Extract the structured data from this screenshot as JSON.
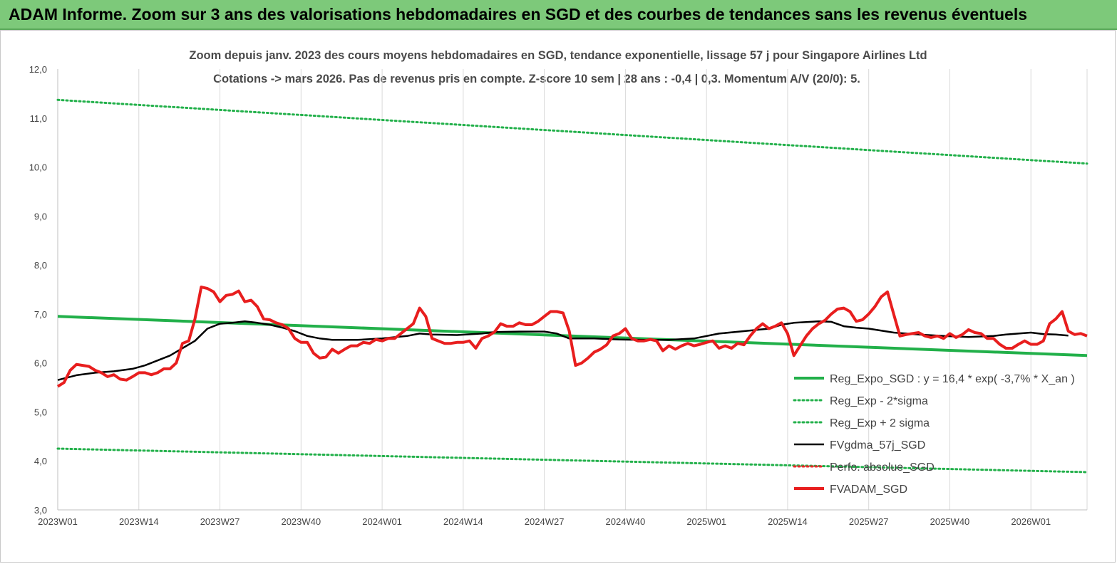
{
  "banner": {
    "title": "ADAM Informe. Zoom sur 3 ans des valorisations hebdomadaires en SGD et des courbes de tendances sans les revenus éventuels"
  },
  "chart_data": {
    "type": "line",
    "title": "Zoom depuis janv. 2023 des cours moyens hebdomadaires en SGD, tendance exponentielle, lissage 57 j pour Singapore Airlines Ltd",
    "subtitle": "Cotations -> mars 2026. Pas de revenus pris en compte. Z-score 10 sem | 28 ans : -0,4 | 0,3. Momentum A/V (20/0): 5.",
    "xlabel": "",
    "ylabel": "",
    "ylim": [
      3.0,
      12.0
    ],
    "y_ticks": [
      "3,0",
      "4,0",
      "5,0",
      "6,0",
      "7,0",
      "8,0",
      "9,0",
      "10,0",
      "11,0",
      "12,0"
    ],
    "x_range": [
      "2023W01",
      "2026W12"
    ],
    "x_ticks": [
      "2023W01",
      "2023W14",
      "2023W27",
      "2023W40",
      "2024W01",
      "2024W14",
      "2024W27",
      "2024W40",
      "2025W01",
      "2025W14",
      "2025W27",
      "2025W40",
      "2026W01"
    ],
    "grid": "vertical",
    "legend_position": "bottom-right",
    "series": [
      {
        "name": "Reg_Expo_SGD : y = 16,4 * exp( -3,7% *  X_an )",
        "color": "#22b04a",
        "style": "thick",
        "linear_from_to": [
          6.95,
          6.15
        ]
      },
      {
        "name": "Reg_Exp - 2*sigma",
        "color": "#22b04a",
        "style": "dotted",
        "linear_from_to": [
          4.25,
          3.77
        ]
      },
      {
        "name": "Reg_Exp + 2 sigma",
        "color": "#22b04a",
        "style": "dotted",
        "linear_from_to": [
          11.37,
          10.07
        ]
      },
      {
        "name": "FVgdma_57j_SGD",
        "color": "#000000",
        "style": "solid",
        "points": [
          [
            0,
            5.65
          ],
          [
            3,
            5.75
          ],
          [
            6,
            5.8
          ],
          [
            9,
            5.83
          ],
          [
            12,
            5.88
          ],
          [
            14,
            5.95
          ],
          [
            16,
            6.05
          ],
          [
            18,
            6.15
          ],
          [
            20,
            6.3
          ],
          [
            22,
            6.45
          ],
          [
            24,
            6.7
          ],
          [
            26,
            6.8
          ],
          [
            28,
            6.82
          ],
          [
            30,
            6.85
          ],
          [
            32,
            6.82
          ],
          [
            34,
            6.78
          ],
          [
            36,
            6.72
          ],
          [
            38,
            6.65
          ],
          [
            40,
            6.55
          ],
          [
            42,
            6.5
          ],
          [
            44,
            6.47
          ],
          [
            48,
            6.47
          ],
          [
            52,
            6.5
          ],
          [
            56,
            6.55
          ],
          [
            58,
            6.6
          ],
          [
            60,
            6.58
          ],
          [
            64,
            6.57
          ],
          [
            68,
            6.6
          ],
          [
            70,
            6.63
          ],
          [
            74,
            6.64
          ],
          [
            78,
            6.64
          ],
          [
            80,
            6.6
          ],
          [
            82,
            6.5
          ],
          [
            86,
            6.5
          ],
          [
            90,
            6.48
          ],
          [
            94,
            6.47
          ],
          [
            98,
            6.47
          ],
          [
            102,
            6.5
          ],
          [
            106,
            6.6
          ],
          [
            110,
            6.65
          ],
          [
            114,
            6.7
          ],
          [
            116,
            6.78
          ],
          [
            118,
            6.82
          ],
          [
            122,
            6.85
          ],
          [
            124,
            6.84
          ],
          [
            126,
            6.75
          ],
          [
            128,
            6.72
          ],
          [
            130,
            6.7
          ],
          [
            134,
            6.62
          ],
          [
            136,
            6.6
          ],
          [
            138,
            6.58
          ],
          [
            142,
            6.55
          ],
          [
            146,
            6.53
          ],
          [
            150,
            6.55
          ],
          [
            152,
            6.58
          ],
          [
            154,
            6.6
          ],
          [
            156,
            6.62
          ],
          [
            158,
            6.59
          ],
          [
            160,
            6.58
          ],
          [
            162,
            6.56
          ]
        ]
      },
      {
        "name": "Perfo. absolue_SGD",
        "color": "#ea2a2a",
        "style": "dotted",
        "points": []
      },
      {
        "name": "FVADAM_SGD",
        "color": "#e81e1e",
        "style": "thick",
        "points": [
          [
            0,
            5.52
          ],
          [
            1,
            5.6
          ],
          [
            2,
            5.85
          ],
          [
            3,
            5.97
          ],
          [
            4,
            5.95
          ],
          [
            5,
            5.93
          ],
          [
            6,
            5.85
          ],
          [
            7,
            5.8
          ],
          [
            8,
            5.72
          ],
          [
            9,
            5.76
          ],
          [
            10,
            5.67
          ],
          [
            11,
            5.65
          ],
          [
            12,
            5.72
          ],
          [
            13,
            5.8
          ],
          [
            14,
            5.8
          ],
          [
            15,
            5.76
          ],
          [
            16,
            5.8
          ],
          [
            17,
            5.88
          ],
          [
            18,
            5.88
          ],
          [
            19,
            6.0
          ],
          [
            20,
            6.4
          ],
          [
            21,
            6.45
          ],
          [
            22,
            6.9
          ],
          [
            23,
            7.55
          ],
          [
            24,
            7.52
          ],
          [
            25,
            7.45
          ],
          [
            26,
            7.25
          ],
          [
            27,
            7.38
          ],
          [
            28,
            7.4
          ],
          [
            29,
            7.47
          ],
          [
            30,
            7.25
          ],
          [
            31,
            7.28
          ],
          [
            32,
            7.15
          ],
          [
            33,
            6.9
          ],
          [
            34,
            6.88
          ],
          [
            35,
            6.82
          ],
          [
            36,
            6.78
          ],
          [
            37,
            6.7
          ],
          [
            38,
            6.5
          ],
          [
            39,
            6.42
          ],
          [
            40,
            6.42
          ],
          [
            41,
            6.2
          ],
          [
            42,
            6.1
          ],
          [
            43,
            6.12
          ],
          [
            44,
            6.28
          ],
          [
            45,
            6.2
          ],
          [
            46,
            6.28
          ],
          [
            47,
            6.35
          ],
          [
            48,
            6.35
          ],
          [
            49,
            6.42
          ],
          [
            50,
            6.4
          ],
          [
            51,
            6.48
          ],
          [
            52,
            6.45
          ],
          [
            53,
            6.5
          ],
          [
            54,
            6.5
          ],
          [
            55,
            6.6
          ],
          [
            56,
            6.7
          ],
          [
            57,
            6.8
          ],
          [
            58,
            7.12
          ],
          [
            59,
            6.95
          ],
          [
            60,
            6.5
          ],
          [
            61,
            6.45
          ],
          [
            62,
            6.4
          ],
          [
            63,
            6.4
          ],
          [
            64,
            6.42
          ],
          [
            65,
            6.42
          ],
          [
            66,
            6.45
          ],
          [
            67,
            6.3
          ],
          [
            68,
            6.5
          ],
          [
            69,
            6.55
          ],
          [
            70,
            6.63
          ],
          [
            71,
            6.8
          ],
          [
            72,
            6.75
          ],
          [
            73,
            6.75
          ],
          [
            74,
            6.82
          ],
          [
            75,
            6.78
          ],
          [
            76,
            6.78
          ],
          [
            77,
            6.85
          ],
          [
            78,
            6.95
          ],
          [
            79,
            7.05
          ],
          [
            80,
            7.05
          ],
          [
            81,
            7.02
          ],
          [
            82,
            6.65
          ],
          [
            83,
            5.95
          ],
          [
            84,
            6.0
          ],
          [
            85,
            6.1
          ],
          [
            86,
            6.22
          ],
          [
            87,
            6.28
          ],
          [
            88,
            6.37
          ],
          [
            89,
            6.55
          ],
          [
            90,
            6.6
          ],
          [
            91,
            6.7
          ],
          [
            92,
            6.5
          ],
          [
            93,
            6.45
          ],
          [
            94,
            6.45
          ],
          [
            95,
            6.48
          ],
          [
            96,
            6.45
          ],
          [
            97,
            6.25
          ],
          [
            98,
            6.35
          ],
          [
            99,
            6.28
          ],
          [
            100,
            6.35
          ],
          [
            101,
            6.4
          ],
          [
            102,
            6.35
          ],
          [
            103,
            6.38
          ],
          [
            104,
            6.42
          ],
          [
            105,
            6.45
          ],
          [
            106,
            6.3
          ],
          [
            107,
            6.35
          ],
          [
            108,
            6.3
          ],
          [
            109,
            6.4
          ],
          [
            110,
            6.37
          ],
          [
            111,
            6.55
          ],
          [
            112,
            6.7
          ],
          [
            113,
            6.8
          ],
          [
            114,
            6.7
          ],
          [
            115,
            6.75
          ],
          [
            116,
            6.82
          ],
          [
            117,
            6.6
          ],
          [
            118,
            6.15
          ],
          [
            119,
            6.35
          ],
          [
            120,
            6.55
          ],
          [
            121,
            6.7
          ],
          [
            122,
            6.8
          ],
          [
            123,
            6.87
          ],
          [
            124,
            7.0
          ],
          [
            125,
            7.1
          ],
          [
            126,
            7.12
          ],
          [
            127,
            7.05
          ],
          [
            128,
            6.85
          ],
          [
            129,
            6.88
          ],
          [
            130,
            7.0
          ],
          [
            131,
            7.15
          ],
          [
            132,
            7.35
          ],
          [
            133,
            7.45
          ],
          [
            134,
            7.0
          ],
          [
            135,
            6.55
          ],
          [
            136,
            6.58
          ],
          [
            137,
            6.6
          ],
          [
            138,
            6.62
          ],
          [
            139,
            6.55
          ],
          [
            140,
            6.52
          ],
          [
            141,
            6.55
          ],
          [
            142,
            6.5
          ],
          [
            143,
            6.6
          ],
          [
            144,
            6.52
          ],
          [
            145,
            6.58
          ],
          [
            146,
            6.68
          ],
          [
            147,
            6.62
          ],
          [
            148,
            6.6
          ],
          [
            149,
            6.5
          ],
          [
            150,
            6.5
          ],
          [
            151,
            6.38
          ],
          [
            152,
            6.3
          ],
          [
            153,
            6.3
          ],
          [
            154,
            6.38
          ],
          [
            155,
            6.45
          ],
          [
            156,
            6.38
          ],
          [
            157,
            6.38
          ],
          [
            158,
            6.45
          ],
          [
            159,
            6.8
          ],
          [
            160,
            6.9
          ],
          [
            161,
            7.05
          ],
          [
            162,
            6.65
          ],
          [
            163,
            6.58
          ],
          [
            164,
            6.6
          ],
          [
            165,
            6.55
          ]
        ]
      }
    ]
  }
}
